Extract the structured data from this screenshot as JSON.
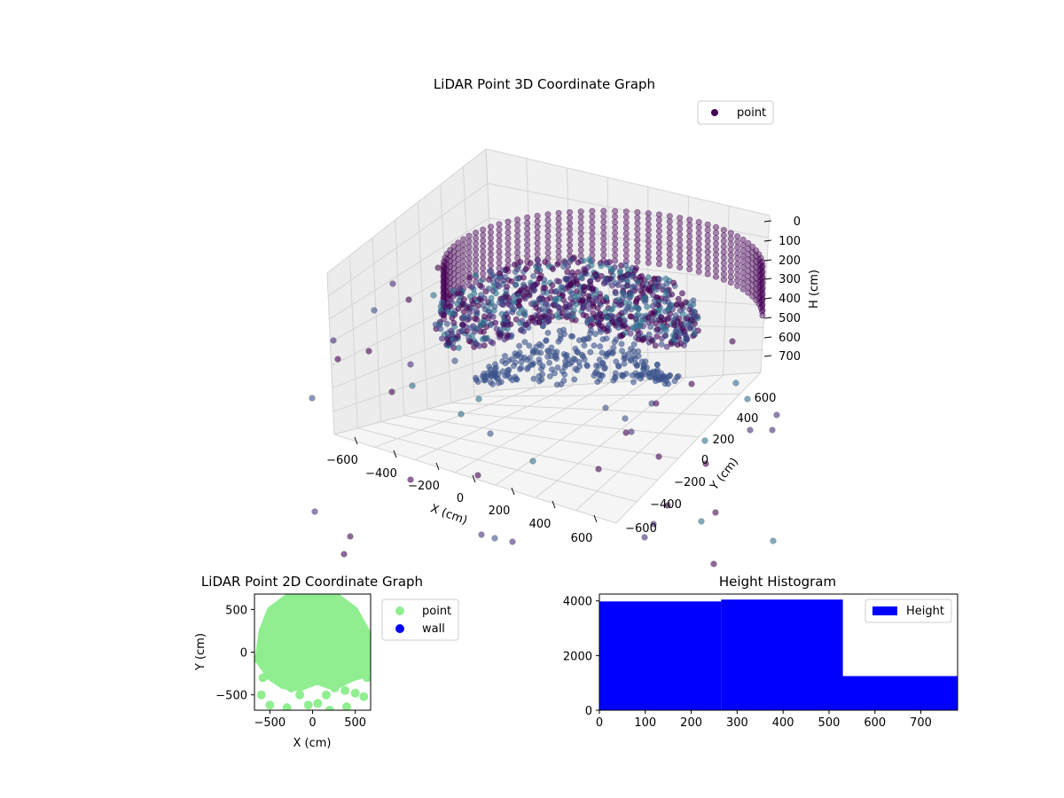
{
  "colors": {
    "pane_left": "#ececec",
    "pane_right": "#f0f0f0",
    "pane_floor": "#f5f5f5",
    "grid": "#d4d4d4",
    "viridis_dark": "#440154",
    "viridis_mid": "#3b528b",
    "viridis_teal": "#21918c",
    "point_2d": "#90ee90",
    "wall_2d": "#0000ff",
    "hist_bar": "#0000ff"
  },
  "chart_data": [
    {
      "type": "scatter",
      "title": "LiDAR Point 3D Coordinate Graph",
      "projection": "3d",
      "xlabel": "X (cm)",
      "ylabel": "Y (cm)",
      "zlabel": "H (cm)",
      "xlim": [
        -700,
        700
      ],
      "ylim": [
        -700,
        700
      ],
      "zlim": [
        0,
        780
      ],
      "z_inverted": true,
      "x_ticks": [
        "−600",
        "−400",
        "−200",
        "0",
        "200",
        "400",
        "600"
      ],
      "y_ticks": [
        "−600",
        "−400",
        "−200",
        "0",
        "200",
        "400",
        "600"
      ],
      "z_ticks": [
        "0",
        "100",
        "200",
        "300",
        "400",
        "500",
        "600",
        "700"
      ],
      "grid": true,
      "colormap": "viridis",
      "legend": {
        "entries": [
          "point"
        ],
        "placement": "top-right"
      },
      "series": [
        {
          "name": "point",
          "description_points": [
            {
              "x": -80,
              "y": 330,
              "h": 50
            },
            {
              "x": 90,
              "y": 290,
              "h": 30
            },
            {
              "x": 250,
              "y": 220,
              "h": 60
            },
            {
              "x": 380,
              "y": 120,
              "h": 120
            },
            {
              "x": 450,
              "y": 20,
              "h": 200
            },
            {
              "x": -230,
              "y": 210,
              "h": 120
            },
            {
              "x": -330,
              "y": 80,
              "h": 250
            },
            {
              "x": -200,
              "y": -50,
              "h": 500
            },
            {
              "x": 0,
              "y": -100,
              "h": 620
            },
            {
              "x": 150,
              "y": -80,
              "h": 580
            },
            {
              "x": 300,
              "y": 60,
              "h": 450
            },
            {
              "x": -450,
              "y": -200,
              "h": 300
            },
            {
              "x": 500,
              "y": -300,
              "h": 150
            },
            {
              "x": -600,
              "y": 300,
              "h": 200
            }
          ]
        }
      ]
    },
    {
      "type": "scatter",
      "title": "LiDAR Point 2D Coordinate Graph",
      "xlabel": "X (cm)",
      "ylabel": "Y (cm)",
      "xlim": [
        -680,
        680
      ],
      "ylim": [
        -680,
        680
      ],
      "x_ticks": [
        -500,
        0,
        500
      ],
      "y_ticks": [
        -500,
        0,
        500
      ],
      "legend": {
        "entries": [
          "point",
          "wall"
        ],
        "placement": "outside-right"
      },
      "series": [
        {
          "name": "point",
          "color": "#90ee90",
          "outline": [
            {
              "x": -640,
              "y": -40
            },
            {
              "x": -600,
              "y": 250
            },
            {
              "x": -500,
              "y": 500
            },
            {
              "x": -300,
              "y": 650
            },
            {
              "x": 0,
              "y": 690
            },
            {
              "x": 300,
              "y": 650
            },
            {
              "x": 500,
              "y": 500
            },
            {
              "x": 640,
              "y": 250
            },
            {
              "x": 660,
              "y": 0
            },
            {
              "x": 640,
              "y": -260
            },
            {
              "x": 450,
              "y": -320
            },
            {
              "x": 250,
              "y": -420
            },
            {
              "x": 50,
              "y": -350
            },
            {
              "x": -150,
              "y": -430
            },
            {
              "x": -350,
              "y": -400
            },
            {
              "x": -500,
              "y": -300
            },
            {
              "x": -640,
              "y": -100
            }
          ]
        },
        {
          "name": "wall",
          "color": "#0000ff",
          "points": []
        }
      ]
    },
    {
      "type": "bar",
      "title": "Height Histogram",
      "xlim": [
        0,
        780
      ],
      "ylim": [
        0,
        4250
      ],
      "x_ticks": [
        0,
        100,
        200,
        300,
        400,
        500,
        600,
        700
      ],
      "y_ticks": [
        0,
        2000,
        4000
      ],
      "legend": {
        "entries": [
          "Height"
        ],
        "placement": "top-right"
      },
      "bins": [
        {
          "from": 0,
          "to": 265,
          "count": 3980
        },
        {
          "from": 265,
          "to": 530,
          "count": 4050
        },
        {
          "from": 530,
          "to": 780,
          "count": 1250
        }
      ]
    }
  ]
}
